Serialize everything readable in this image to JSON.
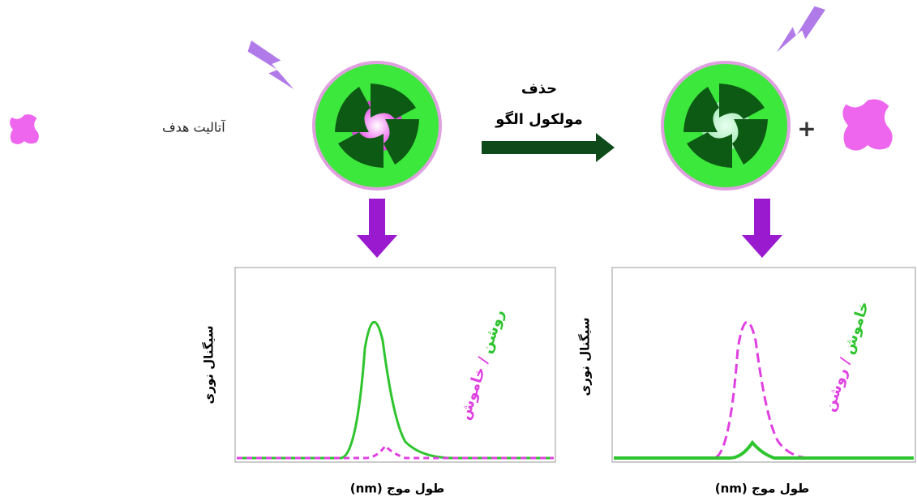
{
  "legend": {
    "label": "آتالیت هدف"
  },
  "arrow": {
    "lines": [
      "حذف",
      "مولکول الگو"
    ]
  },
  "plus": "+",
  "plots": [
    {
      "y_label": "سیگنال نوری",
      "x_label": "طول موج (nm)",
      "annotation": [
        "روشن",
        " / ",
        "خاموش"
      ]
    },
    {
      "y_label": "سیگنال نوری",
      "x_label": "طول موج (nm)",
      "annotation": [
        "خاموش",
        " / ",
        "روشن"
      ]
    }
  ]
}
